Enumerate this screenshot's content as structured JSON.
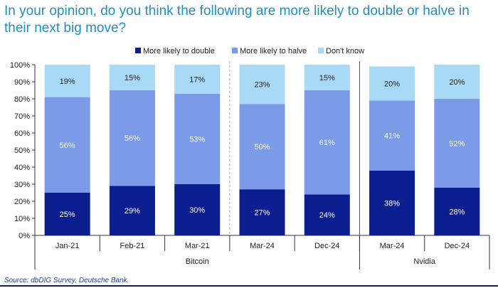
{
  "title": "In your opinion, do you think the following are more likely to double or halve in their next big move?",
  "source": "Source: dbDIG Survey, Deutsche Bank.",
  "colors": {
    "double": "#0b1e8f",
    "halve": "#7b9ae8",
    "dont_know": "#a8daf7",
    "axis": "#333333",
    "title": "#1f8fbf",
    "label_light": "#ffffff",
    "label_dark": "#222222"
  },
  "chart_data": {
    "type": "bar",
    "stacked": true,
    "percent_scale": true,
    "categories": [
      "Jan-21",
      "Feb-21",
      "Mar-21",
      "Mar-24",
      "Dec-24",
      "Mar-24",
      "Dec-24"
    ],
    "groups": [
      {
        "name": "Bitcoin",
        "categories": [
          0,
          1,
          2,
          3,
          4
        ]
      },
      {
        "name": "Nvidia",
        "categories": [
          5,
          6
        ]
      }
    ],
    "series": [
      {
        "name": "More likely to double",
        "values": [
          25,
          29,
          30,
          27,
          24,
          38,
          28
        ],
        "labels": [
          "25%",
          "29%",
          "30%",
          "27%",
          "24%",
          "38%",
          "28%"
        ]
      },
      {
        "name": "More likely to halve",
        "values": [
          56,
          56,
          53,
          50,
          61,
          41,
          52
        ],
        "labels": [
          "56%",
          "56%",
          "53%",
          "50%",
          "61%",
          "41%",
          "52%"
        ]
      },
      {
        "name": "Don't know",
        "values": [
          19,
          15,
          17,
          23,
          15,
          20,
          20
        ],
        "labels": [
          "19%",
          "15%",
          "17%",
          "23%",
          "15%",
          "20%",
          "20%"
        ]
      }
    ],
    "ylim": [
      0,
      100
    ],
    "yticks": [
      "0%",
      "10%",
      "20%",
      "30%",
      "40%",
      "50%",
      "60%",
      "70%",
      "80%",
      "90%",
      "100%"
    ],
    "legend_position": "top",
    "grid": false
  }
}
